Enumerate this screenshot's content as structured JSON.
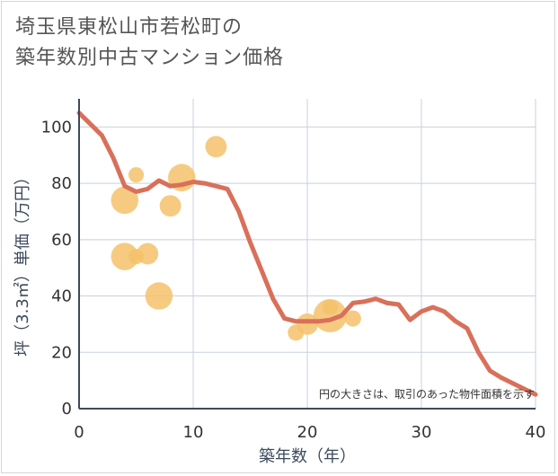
{
  "title_lines": [
    "埼玉県東松山市若松町の",
    "築年数別中古マンション価格"
  ],
  "chart_data": {
    "type": "scatter",
    "xlabel": "築年数（年）",
    "ylabel": "坪（3.3㎡）単価（万円）",
    "xlim": [
      0,
      40
    ],
    "ylim": [
      0,
      110
    ],
    "xticks": [
      "0",
      "10",
      "20",
      "30",
      "40"
    ],
    "yticks": [
      "0",
      "20",
      "40",
      "60",
      "80",
      "100"
    ],
    "grid": true,
    "note": "円の大きさは、取引のあった物件面積を示す",
    "colors": {
      "bubble": "#f5c26b",
      "line": "#d9705a",
      "grid": "#c8d1dc",
      "axis": "#3d4a5c"
    },
    "points": [
      {
        "x": 4,
        "y": 74,
        "size": 3
      },
      {
        "x": 4,
        "y": 54,
        "size": 3
      },
      {
        "x": 5,
        "y": 83,
        "size": 0.5
      },
      {
        "x": 5,
        "y": 54,
        "size": 0.5
      },
      {
        "x": 6,
        "y": 55,
        "size": 1.5
      },
      {
        "x": 7,
        "y": 40,
        "size": 3
      },
      {
        "x": 8,
        "y": 72,
        "size": 1.5
      },
      {
        "x": 9,
        "y": 82,
        "size": 3
      },
      {
        "x": 12,
        "y": 93,
        "size": 1.5
      },
      {
        "x": 19,
        "y": 27,
        "size": 0.6
      },
      {
        "x": 20,
        "y": 30,
        "size": 1.5
      },
      {
        "x": 22,
        "y": 33,
        "size": 5
      },
      {
        "x": 22,
        "y": 36,
        "size": 0.5
      },
      {
        "x": 24,
        "y": 32,
        "size": 0.6
      }
    ],
    "trend": {
      "x": [
        0,
        1,
        2,
        3,
        4,
        5,
        6,
        7,
        8,
        9,
        10,
        11,
        12,
        13,
        14,
        15,
        16,
        17,
        18,
        19,
        20,
        21,
        22,
        23,
        24,
        25,
        26,
        27,
        28,
        29,
        30,
        31,
        32,
        33,
        34,
        35,
        36,
        37,
        38,
        39,
        40
      ],
      "y": [
        105,
        101,
        97,
        89,
        79,
        77,
        78,
        81,
        79,
        79.5,
        80.5,
        80,
        79,
        78,
        70,
        59,
        49,
        39,
        32,
        31,
        31,
        31,
        31.5,
        33,
        37.5,
        38,
        39,
        37.5,
        37,
        31.5,
        34.5,
        36,
        34.5,
        31,
        28.5,
        20,
        13.5,
        11,
        9,
        7,
        5
      ]
    }
  }
}
